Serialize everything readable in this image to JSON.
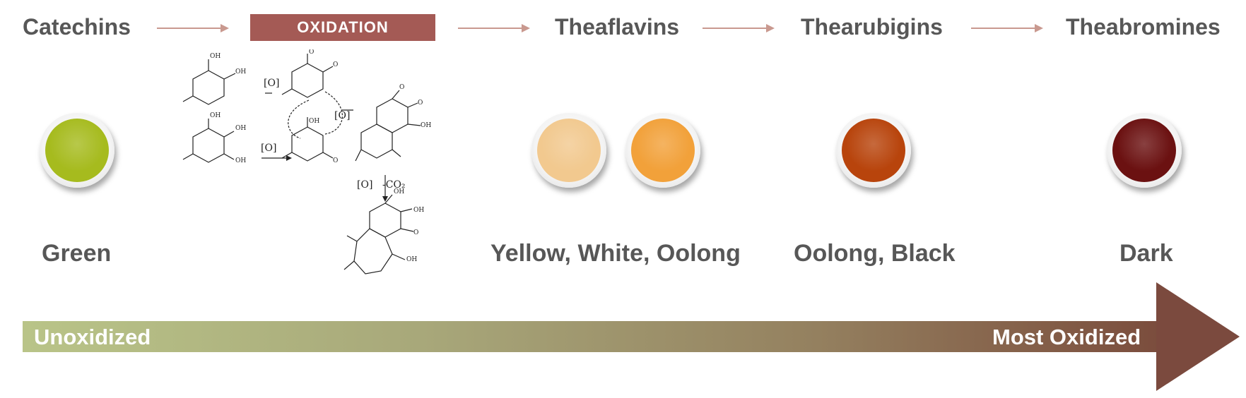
{
  "stages": [
    {
      "name": "Catechins"
    },
    {
      "name": "Theaflavins"
    },
    {
      "name": "Thearubigins"
    },
    {
      "name": "Theabromines"
    }
  ],
  "process_box": {
    "label": "OXIDATION",
    "color": "#a45a55"
  },
  "teas": [
    {
      "label": "Green",
      "cups": [
        "#a6bb1e"
      ]
    },
    {
      "label": "Yellow, White, Oolong",
      "cups": [
        "#f2c98f",
        "#f2a13a"
      ]
    },
    {
      "label": "Oolong, Black",
      "cups": [
        "#b8440c"
      ]
    },
    {
      "label": "Dark",
      "cups": [
        "#6b1111"
      ]
    }
  ],
  "oxidation_scale": {
    "start_label": "Unoxidized",
    "end_label": "Most Oxidized",
    "start_color": "#b9c488",
    "end_color": "#7b4a3e"
  },
  "chemistry": {
    "oxidant": "[O]",
    "decarboxylation": "-CO₂",
    "hydroxyl": "OH",
    "oxygen": "O"
  }
}
